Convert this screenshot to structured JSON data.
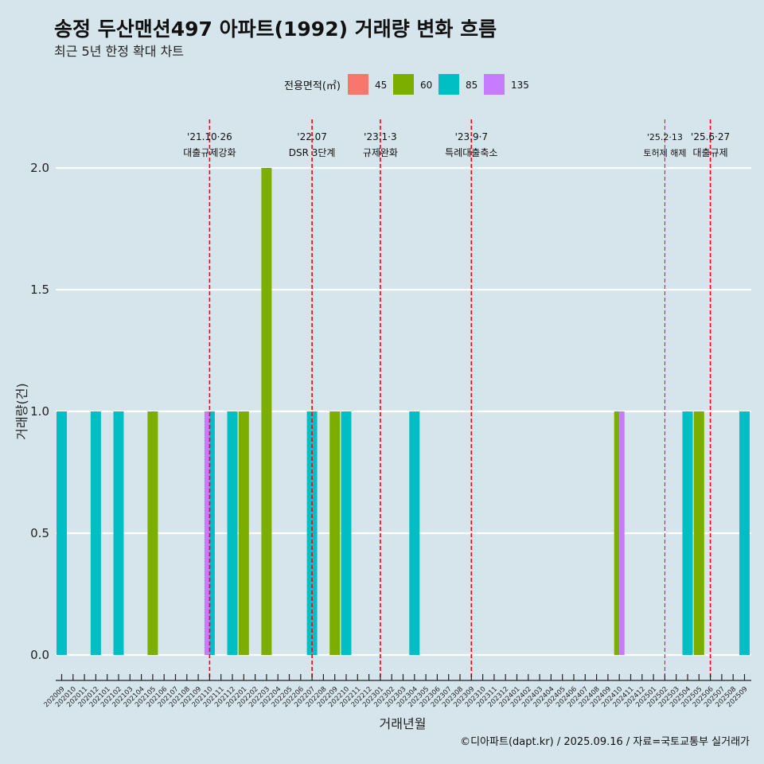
{
  "chart_data": {
    "type": "bar",
    "title": "송정 두산맨션497 아파트(1992) 거래량 변화 흐름",
    "subtitle": "최근 5년 한정 확대 차트",
    "xlabel": "거래년월",
    "ylabel": "거래량(건)",
    "ylim": [
      0,
      2.0
    ],
    "yticks": [
      "0.0",
      "0.5",
      "1.0",
      "1.5",
      "2.0"
    ],
    "legend": {
      "title": "전용면적(㎡)",
      "position": "top",
      "items": [
        {
          "label": "45",
          "color": "#f8766d"
        },
        {
          "label": "60",
          "color": "#7cae00"
        },
        {
          "label": "85",
          "color": "#00bfc4"
        },
        {
          "label": "135",
          "color": "#c77cff"
        }
      ]
    },
    "categories": [
      "202009",
      "202010",
      "202011",
      "202012",
      "202101",
      "202102",
      "202103",
      "202104",
      "202105",
      "202106",
      "202107",
      "202108",
      "202109",
      "202110",
      "202111",
      "202112",
      "202201",
      "202202",
      "202203",
      "202204",
      "202205",
      "202206",
      "202207",
      "202208",
      "202209",
      "202210",
      "202211",
      "202212",
      "202301",
      "202302",
      "202303",
      "202304",
      "202305",
      "202306",
      "202307",
      "202308",
      "202309",
      "202310",
      "202311",
      "202312",
      "202401",
      "202402",
      "202403",
      "202404",
      "202405",
      "202406",
      "202407",
      "202408",
      "202409",
      "202410",
      "202411",
      "202412",
      "202501",
      "202502",
      "202503",
      "202504",
      "202505",
      "202506",
      "202507",
      "202508",
      "202509"
    ],
    "bars": [
      {
        "month": "202009",
        "area": "85",
        "value": 1
      },
      {
        "month": "202012",
        "area": "85",
        "value": 1
      },
      {
        "month": "202102",
        "area": "85",
        "value": 1
      },
      {
        "month": "202105",
        "area": "60",
        "value": 1
      },
      {
        "month": "202110",
        "area": "135",
        "value": 1
      },
      {
        "month": "202110",
        "area": "85",
        "value": 1
      },
      {
        "month": "202112",
        "area": "85",
        "value": 1
      },
      {
        "month": "202201",
        "area": "60",
        "value": 1
      },
      {
        "month": "202203",
        "area": "60",
        "value": 2
      },
      {
        "month": "202207",
        "area": "85",
        "value": 1
      },
      {
        "month": "202209",
        "area": "60",
        "value": 1
      },
      {
        "month": "202210",
        "area": "85",
        "value": 1
      },
      {
        "month": "202304",
        "area": "85",
        "value": 1
      },
      {
        "month": "202410",
        "area": "60",
        "value": 1
      },
      {
        "month": "202410",
        "area": "135",
        "value": 1
      },
      {
        "month": "202504",
        "area": "85",
        "value": 1
      },
      {
        "month": "202505",
        "area": "60",
        "value": 1
      },
      {
        "month": "202509",
        "area": "85",
        "value": 1
      }
    ],
    "events": [
      {
        "month": "202110",
        "label1": "'21.10·26",
        "label2": "대출규제강화"
      },
      {
        "month": "202207",
        "label1": "'22.07",
        "label2": "DSR 3단계"
      },
      {
        "month": "202301",
        "label1": "'23.1·3",
        "label2": "규제완화"
      },
      {
        "month": "202309",
        "label1": "'23.9·7",
        "label2": "특례대출축소"
      },
      {
        "month": "202502",
        "label1": "'25.2·13",
        "label2": "토허제 해제",
        "small": true
      },
      {
        "month": "202506",
        "label1": "'25.6·27",
        "label2": "대출규제"
      }
    ],
    "event_color": "#ff0000",
    "grid": true,
    "caption": "©디아파트(dapt.kr) / 2025.09.16 / 자료=국토교통부 실거래가"
  }
}
